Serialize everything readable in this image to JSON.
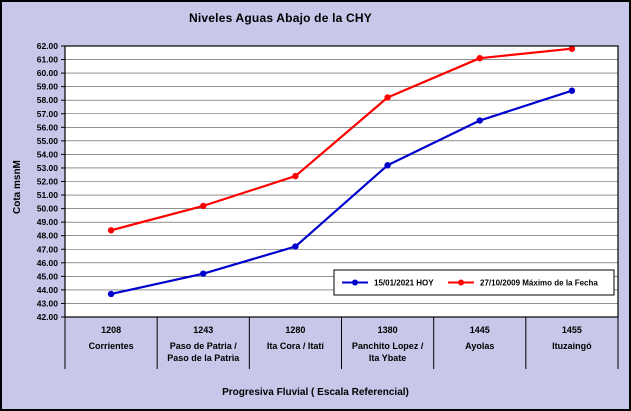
{
  "chart_data": {
    "type": "line",
    "title": "Niveles Aguas Abajo de la CHY",
    "xlabel": "Progresiva Fluvial ( Escala Referencial)",
    "ylabel": "Cota msnM",
    "ylim": [
      42,
      62
    ],
    "ytick_step": 1,
    "ytick_decimals": 2,
    "grid": "horizontal",
    "legend_position": "inside-bottom-right",
    "plot_background": "#ffffff",
    "chart_background": "#c6c7e9",
    "categories": [
      {
        "km": "1208",
        "name_lines": [
          "Corrientes"
        ]
      },
      {
        "km": "1243",
        "name_lines": [
          "Paso de Patria /",
          "Paso de la Patria"
        ]
      },
      {
        "km": "1280",
        "name_lines": [
          "Ita Cora / Itatí"
        ]
      },
      {
        "km": "1380",
        "name_lines": [
          "Panchito Lopez /",
          "Ita Ybate"
        ]
      },
      {
        "km": "1445",
        "name_lines": [
          "Ayolas"
        ]
      },
      {
        "km": "1455",
        "name_lines": [
          "Ituzaingó"
        ]
      }
    ],
    "series": [
      {
        "name": "15/01/2021 HOY",
        "color": "#0000cc",
        "values": [
          43.7,
          45.2,
          47.2,
          53.2,
          56.5,
          58.7
        ]
      },
      {
        "name": "27/10/2009 Máximo de la Fecha",
        "color": "#ff0000",
        "values": [
          48.4,
          50.2,
          52.4,
          58.2,
          61.1,
          61.8
        ]
      }
    ]
  }
}
